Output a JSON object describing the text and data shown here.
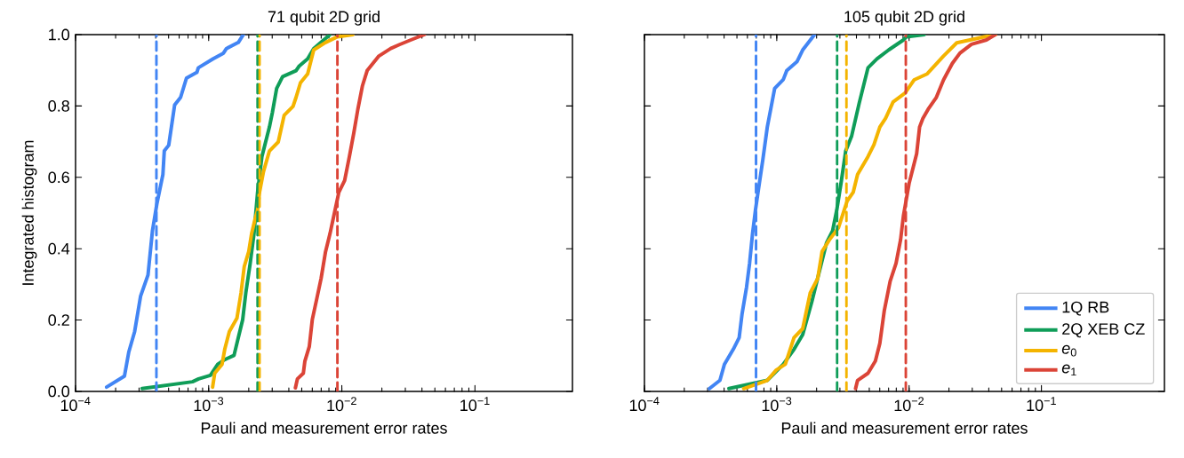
{
  "chart_data": [
    {
      "type": "line",
      "title": "71 qubit 2D grid",
      "xlabel": "Pauli and measurement error rates",
      "ylabel": "Integrated histogram",
      "log": "x",
      "marker": "none",
      "line_style": "solid",
      "legend": false,
      "xlim": [
        0.0001,
        0.54
      ],
      "ylim": [
        0,
        1
      ],
      "xticks": [
        {
          "value": 0.0001,
          "label": "10$^{−4}$"
        },
        {
          "value": 0.001,
          "label": "10$^{−3}$"
        },
        {
          "value": 0.01,
          "label": "10$^{−2}$"
        },
        {
          "value": 0.1,
          "label": "10$^{−1}$"
        }
      ],
      "yticks": [
        {
          "value": 0,
          "label": "0.0"
        },
        0.2,
        0.4,
        0.6,
        0.8,
        {
          "value": 1,
          "label": "1.0"
        }
      ],
      "series": [
        {
          "color": "#4285f4",
          "x": [
            0.000171,
            0.000233,
            0.000251,
            0.000278,
            0.000308,
            0.00035,
            0.000378,
            0.000408,
            0.000453,
            0.000464,
            0.000501,
            0.000555,
            0.000615,
            0.000681,
            0.000815,
            0.000836,
            0.00108,
            0.00129,
            0.00136,
            0.00167,
            0.00182
          ],
          "values": [
            0.012,
            0.043,
            0.11,
            0.168,
            0.267,
            0.326,
            0.45,
            0.525,
            0.608,
            0.674,
            0.69,
            0.803,
            0.824,
            0.878,
            0.894,
            0.907,
            0.932,
            0.948,
            0.961,
            0.978,
            1.0
          ]
        },
        {
          "color": "#0f9d58",
          "x": [
            0.000316,
            0.000755,
            0.00084,
            0.00103,
            0.00117,
            0.00132,
            0.00155,
            0.00167,
            0.0018,
            0.0019,
            0.00205,
            0.00219,
            0.00233,
            0.00251,
            0.00286,
            0.00301,
            0.00324,
            0.00359,
            0.00453,
            0.00476,
            0.00554,
            0.00615,
            0.00815
          ],
          "values": [
            0.008,
            0.027,
            0.035,
            0.045,
            0.076,
            0.089,
            0.101,
            0.151,
            0.201,
            0.276,
            0.359,
            0.442,
            0.558,
            0.658,
            0.741,
            0.782,
            0.849,
            0.882,
            0.899,
            0.911,
            0.932,
            0.961,
            1.0
          ]
        },
        {
          "color": "#f4b400",
          "x": [
            0.00107,
            0.00111,
            0.00126,
            0.00132,
            0.00143,
            0.00163,
            0.00175,
            0.00185,
            0.002,
            0.0021,
            0.00223,
            0.00233,
            0.00241,
            0.00258,
            0.00286,
            0.00333,
            0.00369,
            0.0043,
            0.00453,
            0.00489,
            0.00554,
            0.00615,
            0.00755,
            0.00927,
            0.0121
          ],
          "values": [
            0.012,
            0.051,
            0.076,
            0.118,
            0.168,
            0.205,
            0.276,
            0.35,
            0.392,
            0.442,
            0.483,
            0.508,
            0.558,
            0.616,
            0.674,
            0.699,
            0.774,
            0.799,
            0.824,
            0.865,
            0.89,
            0.957,
            0.978,
            0.994,
            1.0
          ]
        },
        {
          "color": "#db4437",
          "x": [
            0.00448,
            0.00464,
            0.00514,
            0.00528,
            0.0057,
            0.006,
            0.00648,
            0.00699,
            0.00755,
            0.00815,
            0.0088,
            0.0095,
            0.0105,
            0.0114,
            0.0123,
            0.0132,
            0.0143,
            0.0155,
            0.019,
            0.0233,
            0.0271,
            0.033,
            0.0417
          ],
          "values": [
            0.01,
            0.035,
            0.051,
            0.085,
            0.126,
            0.201,
            0.259,
            0.317,
            0.392,
            0.442,
            0.5,
            0.558,
            0.591,
            0.658,
            0.724,
            0.791,
            0.857,
            0.899,
            0.94,
            0.961,
            0.972,
            0.985,
            1.0
          ]
        }
      ],
      "ref_lines": [
        {
          "axis": "x",
          "value": 0.000405,
          "color": "#4285f4",
          "line_style": "dashed"
        },
        {
          "axis": "x",
          "value": 0.00233,
          "color": "#0f9d58",
          "line_style": "dashed"
        },
        {
          "axis": "x",
          "value": 0.00241,
          "color": "#f4b400",
          "line_style": "dashed"
        },
        {
          "axis": "x",
          "value": 0.00927,
          "color": "#db4437",
          "line_style": "dashed"
        }
      ]
    },
    {
      "type": "line",
      "title": "105 qubit 2D grid",
      "xlabel": "Pauli and measurement error rates",
      "log": "x",
      "marker": "none",
      "line_style": "solid",
      "legend": "bottom right",
      "tick_labels": "x",
      "xlim": [
        0.0001,
        0.85
      ],
      "ylim": [
        0,
        1
      ],
      "xticks": [
        {
          "value": 0.0001,
          "label": "10$^{−4}$"
        },
        {
          "value": 0.001,
          "label": "10$^{−3}$"
        },
        {
          "value": 0.01,
          "label": "10$^{−2}$"
        },
        {
          "value": 0.1,
          "label": "10$^{−1}$"
        }
      ],
      "yticks": [
        {
          "value": 0,
          "label": null
        },
        {
          "value": 0.2,
          "label": null
        },
        {
          "value": 0.4,
          "label": null
        },
        {
          "value": 0.6,
          "label": null
        },
        {
          "value": 0.8,
          "label": null
        },
        {
          "value": 1,
          "label": null
        }
      ],
      "series": [
        {
          "name": "1Q RB",
          "color": "#4285f4",
          "x": [
            0.00031,
            0.000372,
            0.000402,
            0.000469,
            0.00052,
            0.000547,
            0.000591,
            0.000623,
            0.000656,
            0.00069,
            0.000727,
            0.000785,
            0.000848,
            0.000964,
            0.00112,
            0.00119,
            0.00142,
            0.00157,
            0.00193
          ],
          "values": [
            0.008,
            0.031,
            0.076,
            0.118,
            0.151,
            0.218,
            0.292,
            0.359,
            0.442,
            0.508,
            0.566,
            0.65,
            0.741,
            0.849,
            0.874,
            0.899,
            0.924,
            0.957,
            1.0
          ]
        },
        {
          "name": "2Q XEB CZ",
          "color": "#0f9d58",
          "x": [
            0.000435,
            0.000848,
            0.000964,
            0.00112,
            0.00135,
            0.00157,
            0.00184,
            0.00209,
            0.00238,
            0.00264,
            0.00284,
            0.00308,
            0.00332,
            0.00368,
            0.00419,
            0.00489,
            0.00571,
            0.00701,
            0.00906,
            0.00955,
            0.013
          ],
          "values": [
            0.008,
            0.031,
            null,
            0.076,
            0.118,
            0.159,
            0.251,
            0.334,
            0.417,
            0.45,
            0.508,
            0.591,
            0.674,
            0.716,
            0.807,
            0.907,
            0.932,
            0.957,
            0.985,
            0.994,
            1.0
          ]
        },
        {
          "name": "*e*$_{0}$",
          "color": "#f4b400",
          "x": [
            0.000562,
            0.000848,
            0.000991,
            0.00116,
            0.00135,
            0.00157,
            0.00179,
            0.00204,
            0.0022,
            0.0025,
            0.00292,
            0.0034,
            0.00378,
            0.00408,
            0.00489,
            0.00542,
            0.00601,
            0.00665,
            0.00757,
            0.00931,
            0.0109,
            0.0137,
            0.0182,
            0.0229,
            0.0363,
            0.045
          ],
          "values": [
            0.008,
            0.031,
            0.06,
            0.076,
            0.151,
            0.176,
            0.276,
            0.317,
            0.392,
            0.425,
            0.458,
            0.533,
            0.558,
            0.608,
            0.658,
            0.691,
            0.741,
            0.766,
            0.811,
            0.836,
            0.873,
            0.89,
            0.94,
            0.977,
            0.993,
            1.0
          ]
        },
        {
          "name": "*e*$_{1}$",
          "color": "#db4437",
          "x": [
            0.00394,
            0.00408,
            0.00489,
            0.00556,
            0.00601,
            0.00649,
            0.00719,
            0.00797,
            0.00862,
            0.00906,
            0.01,
            0.0114,
            0.012,
            0.0127,
            0.0141,
            0.016,
            0.0182,
            0.0212,
            0.0242,
            0.0296,
            0.0384,
            0.0448
          ],
          "values": [
            0.008,
            0.031,
            0.051,
            0.085,
            0.135,
            0.226,
            0.309,
            0.359,
            0.425,
            0.492,
            0.583,
            0.666,
            0.741,
            0.765,
            0.794,
            0.823,
            0.873,
            0.919,
            0.948,
            0.973,
            0.985,
            1.0
          ]
        }
      ],
      "ref_lines": [
        {
          "axis": "x",
          "value": 0.000697,
          "color": "#4285f4",
          "line_style": "dashed"
        },
        {
          "axis": "x",
          "value": 0.00286,
          "color": "#0f9d58",
          "line_style": "dashed"
        },
        {
          "axis": "x",
          "value": 0.00336,
          "color": "#f4b400",
          "line_style": "dashed"
        },
        {
          "axis": "x",
          "value": 0.00944,
          "color": "#db4437",
          "line_style": "dashed"
        }
      ]
    }
  ]
}
